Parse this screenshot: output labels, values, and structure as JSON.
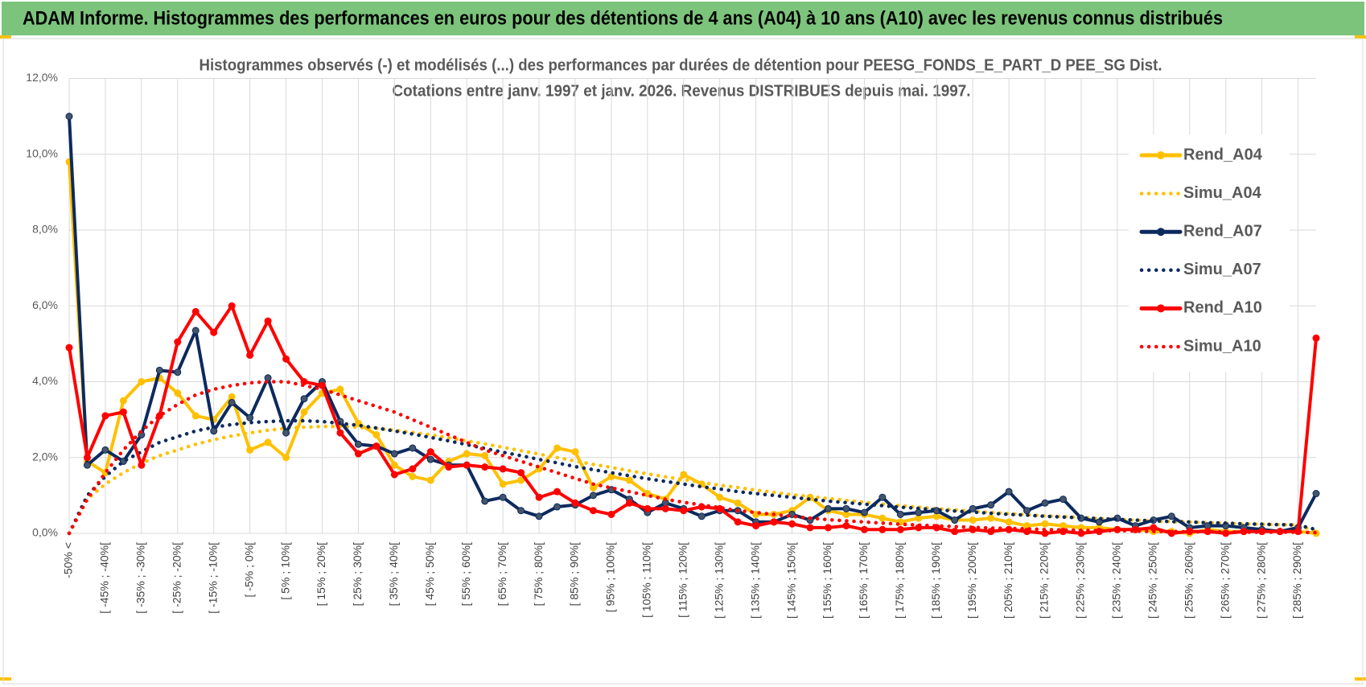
{
  "chart_data": {
    "type": "line",
    "header": "ADAM Informe. Histogrammes des performances en euros pour des détentions de 4 ans (A04) à 10 ans (A10) avec les revenus connus distribués",
    "title": "Histogrammes observés (-) et modélisés (...) des performances  par durées de détention pour PEESG_FONDS_E_PART_D PEE_SG Dist.",
    "subtitle": "Cotations entre janv. 1997 et janv. 2026. Revenus DISTRIBUES depuis mai. 1997.",
    "categories": [
      "-50% <",
      null,
      "[ -45% ; -40%[",
      null,
      "[ -35% ; -30%[",
      null,
      "[ -25% ; -20%[",
      null,
      "[ -15% ; -10%[",
      null,
      "[ -5% ; 0%[",
      null,
      "[ 5% ; 10%[",
      null,
      "[ 15% ; 20%[",
      null,
      "[ 25% ; 30%[",
      null,
      "[ 35% ; 40%[",
      null,
      "[ 45% ; 50%[",
      null,
      "[ 55% ; 60%[",
      null,
      "[ 65% ; 70%[",
      null,
      "[ 75% ; 80%[",
      null,
      "[ 85% ; 90%[",
      null,
      "[ 95% ; 100%[",
      null,
      "[ 105% ; 110%[",
      null,
      "[ 115% ; 120%[",
      null,
      "[ 125% ; 130%[",
      null,
      "[ 135% ; 140%[",
      null,
      "[ 145% ; 150%[",
      null,
      "[ 155% ; 160%[",
      null,
      "[ 165% ; 170%[",
      null,
      "[ 175% ; 180%[",
      null,
      "[ 185% ; 190%[",
      null,
      "[ 195% ; 200%[",
      null,
      "[ 205% ; 210%[",
      null,
      "[ 215% ; 220%[",
      null,
      "[ 225% ; 230%[",
      null,
      "[ 235% ; 240%[",
      null,
      "[ 245% ; 250%[",
      null,
      "[ 255% ; 260%[",
      null,
      "[ 265% ; 270%[",
      null,
      "[ 275% ; 280%[",
      null,
      "[ 285% ; 290%[",
      null
    ],
    "series": [
      {
        "name": "Rend_A04",
        "color": "#ffc000",
        "line_style": "solid",
        "markers": true,
        "values": [
          9.8,
          1.9,
          1.6,
          3.5,
          4.0,
          4.1,
          3.7,
          3.1,
          3.0,
          3.6,
          2.2,
          2.4,
          2.0,
          3.2,
          3.7,
          3.8,
          2.9,
          2.6,
          1.8,
          1.5,
          1.4,
          1.9,
          2.1,
          2.05,
          1.3,
          1.4,
          1.7,
          2.25,
          2.15,
          1.2,
          1.5,
          1.4,
          1.05,
          0.9,
          1.55,
          1.3,
          0.95,
          0.8,
          0.5,
          0.5,
          0.6,
          0.95,
          0.6,
          0.5,
          0.5,
          0.4,
          0.3,
          0.4,
          0.45,
          0.35,
          0.35,
          0.4,
          0.3,
          0.2,
          0.25,
          0.2,
          0.15,
          0.15,
          0.1,
          0.1,
          0.05,
          0.05,
          0.0,
          0.1,
          0.05,
          0.05,
          0.05,
          0.05,
          0.05,
          0.0
        ]
      },
      {
        "name": "Simu_A04",
        "color": "#ffc000",
        "line_style": "dotted",
        "markers": false,
        "values": [
          0,
          0.9,
          1.3,
          1.6,
          1.85,
          2.05,
          2.2,
          2.35,
          2.47,
          2.57,
          2.65,
          2.72,
          2.77,
          2.8,
          2.82,
          2.82,
          2.8,
          2.77,
          2.72,
          2.66,
          2.6,
          2.52,
          2.44,
          2.36,
          2.27,
          2.18,
          2.09,
          2.0,
          1.91,
          1.82,
          1.74,
          1.65,
          1.57,
          1.49,
          1.42,
          1.34,
          1.27,
          1.21,
          1.14,
          1.08,
          1.02,
          0.97,
          0.92,
          0.87,
          0.82,
          0.77,
          0.73,
          0.69,
          0.65,
          0.62,
          0.58,
          0.55,
          0.52,
          0.49,
          0.46,
          0.44,
          0.42,
          0.39,
          0.37,
          0.35,
          0.33,
          0.31,
          0.3,
          0.28,
          0.27,
          0.25,
          0.24,
          0.23,
          0.22,
          0.05
        ]
      },
      {
        "name": "Rend_A07",
        "color": "#0d2a5e",
        "line_style": "solid",
        "markers": true,
        "values": [
          11.0,
          1.8,
          2.2,
          1.9,
          2.6,
          4.3,
          4.25,
          5.35,
          2.7,
          3.45,
          3.05,
          4.1,
          2.65,
          3.55,
          4.0,
          2.95,
          2.35,
          2.3,
          2.1,
          2.25,
          1.95,
          1.8,
          1.8,
          0.85,
          0.95,
          0.6,
          0.45,
          0.7,
          0.75,
          1.0,
          1.15,
          0.9,
          0.55,
          0.8,
          0.65,
          0.45,
          0.6,
          0.6,
          0.3,
          0.3,
          0.5,
          0.35,
          0.65,
          0.65,
          0.55,
          0.95,
          0.5,
          0.55,
          0.6,
          0.35,
          0.65,
          0.75,
          1.1,
          0.6,
          0.8,
          0.9,
          0.4,
          0.3,
          0.4,
          0.2,
          0.35,
          0.45,
          0.15,
          0.2,
          0.2,
          0.15,
          0.1,
          0.05,
          0.15,
          1.05
        ]
      },
      {
        "name": "Simu_A07",
        "color": "#0d2a5e",
        "line_style": "dotted",
        "markers": false,
        "values": [
          0,
          1.0,
          1.5,
          1.9,
          2.15,
          2.4,
          2.55,
          2.7,
          2.8,
          2.87,
          2.92,
          2.95,
          2.97,
          2.97,
          2.95,
          2.9,
          2.85,
          2.78,
          2.7,
          2.62,
          2.53,
          2.44,
          2.34,
          2.24,
          2.14,
          2.05,
          1.95,
          1.86,
          1.76,
          1.68,
          1.6,
          1.52,
          1.44,
          1.37,
          1.3,
          1.23,
          1.17,
          1.1,
          1.05,
          1.0,
          0.95,
          0.9,
          0.85,
          0.81,
          0.77,
          0.73,
          0.69,
          0.66,
          0.62,
          0.59,
          0.56,
          0.53,
          0.5,
          0.48,
          0.45,
          0.43,
          0.41,
          0.39,
          0.37,
          0.35,
          0.33,
          0.31,
          0.3,
          0.28,
          0.27,
          0.25,
          0.24,
          0.23,
          0.22,
          0.1
        ]
      },
      {
        "name": "Rend_A10",
        "color": "#ff0000",
        "line_style": "solid",
        "markers": true,
        "values": [
          4.9,
          2.0,
          3.1,
          3.2,
          1.8,
          3.1,
          5.05,
          5.85,
          5.3,
          6.0,
          4.7,
          5.6,
          4.6,
          4.0,
          3.9,
          2.65,
          2.1,
          2.3,
          1.55,
          1.7,
          2.15,
          1.75,
          1.8,
          1.75,
          1.7,
          1.6,
          0.95,
          1.1,
          0.8,
          0.6,
          0.5,
          0.8,
          0.65,
          0.65,
          0.6,
          0.7,
          0.65,
          0.3,
          0.2,
          0.3,
          0.25,
          0.15,
          0.15,
          0.2,
          0.1,
          0.1,
          0.1,
          0.15,
          0.15,
          0.05,
          0.1,
          0.05,
          0.1,
          0.05,
          0.0,
          0.05,
          0.0,
          0.05,
          0.1,
          0.1,
          0.15,
          0.0,
          0.05,
          0.05,
          0.0,
          0.05,
          0.05,
          0.05,
          0.05,
          5.15
        ]
      },
      {
        "name": "Simu_A10",
        "color": "#ff0000",
        "line_style": "dotted",
        "markers": false,
        "values": [
          0,
          0.9,
          1.6,
          2.2,
          2.7,
          3.1,
          3.4,
          3.65,
          3.8,
          3.9,
          3.97,
          4.0,
          4.0,
          3.9,
          3.8,
          3.65,
          3.5,
          3.35,
          3.2,
          3.0,
          2.8,
          2.6,
          2.4,
          2.2,
          2.05,
          1.9,
          1.75,
          1.6,
          1.45,
          1.3,
          1.2,
          1.1,
          1.0,
          0.9,
          0.82,
          0.75,
          0.68,
          0.6,
          0.55,
          0.5,
          0.45,
          0.4,
          0.36,
          0.33,
          0.3,
          0.27,
          0.24,
          0.22,
          0.2,
          0.18,
          0.16,
          0.14,
          0.13,
          0.12,
          0.1,
          0.09,
          0.08,
          0.07,
          0.07,
          0.06,
          0.05,
          0.05,
          0.04,
          0.04,
          0.04,
          0.03,
          0.03,
          0.03,
          0.03,
          0.02
        ]
      }
    ],
    "ylim": [
      0,
      12
    ],
    "yticks": [
      {
        "value": 0,
        "label": "0,0%"
      },
      {
        "value": 2,
        "label": "2,0%"
      },
      {
        "value": 4,
        "label": "4,0%"
      },
      {
        "value": 6,
        "label": "6,0%"
      },
      {
        "value": 8,
        "label": "8,0%"
      },
      {
        "value": 10,
        "label": "10,0%"
      },
      {
        "value": 12,
        "label": "12,0%"
      }
    ],
    "grid": true,
    "legend": "right"
  }
}
